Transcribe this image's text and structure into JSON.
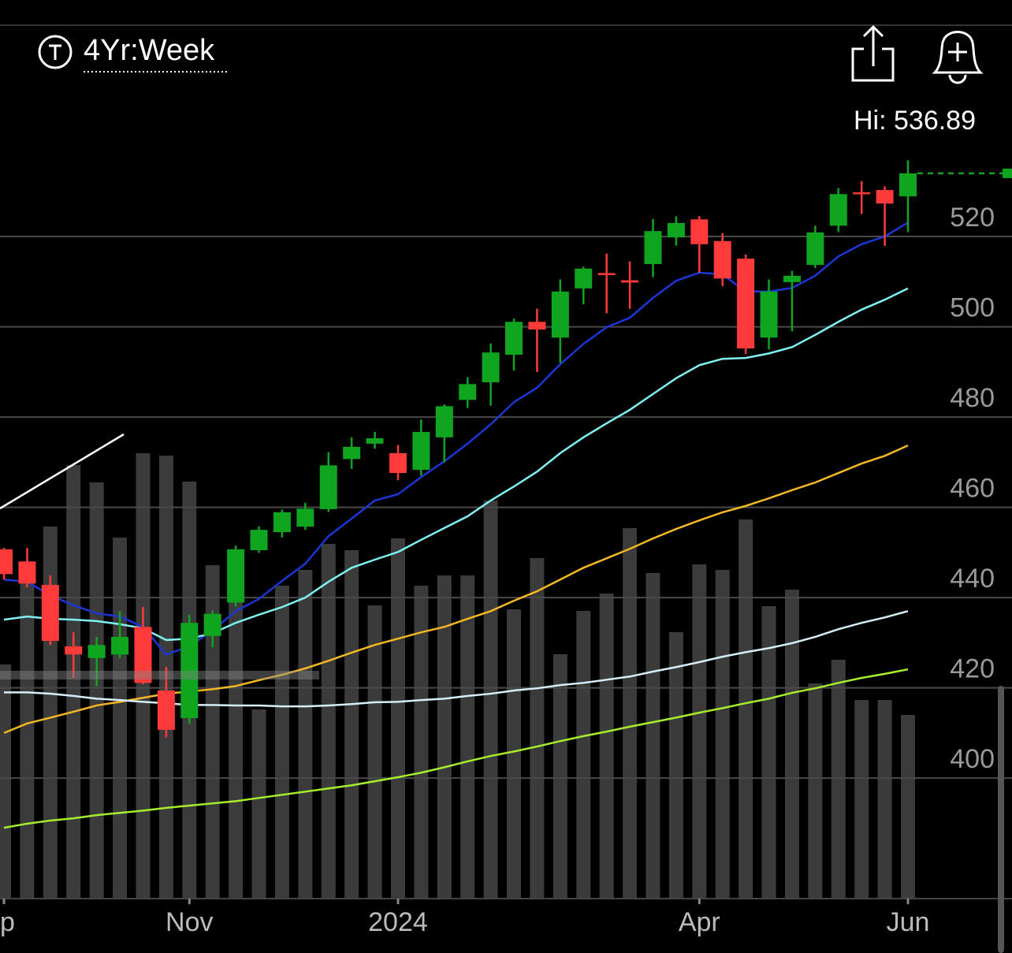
{
  "chart_data": {
    "type": "candlestick",
    "period_label": "4Yr:Week",
    "high_label": "Hi: 536.89",
    "open": [
      450.7,
      448.0,
      442.8,
      429.2,
      426.6,
      427.4,
      433.5,
      419.4,
      413.3,
      431.5,
      438.9,
      450.5,
      454.5,
      455.7,
      459.6,
      470.7,
      474.1,
      472.0,
      468.3,
      475.5,
      483.8,
      487.7,
      493.8,
      501.1,
      497.6,
      508.5,
      511.9,
      510.3,
      513.9,
      519.8,
      523.8,
      519.0,
      515.1,
      497.6,
      509.9,
      513.7,
      522.4,
      529.8,
      530.3,
      528.9
    ],
    "high": [
      451.0,
      451.0,
      444.9,
      432.3,
      431.3,
      437.0,
      437.9,
      424.6,
      436.2,
      437.1,
      451.5,
      455.8,
      459.5,
      461.0,
      472.2,
      475.5,
      476.7,
      473.8,
      479.5,
      482.8,
      488.8,
      496.3,
      501.8,
      504.0,
      510.5,
      513.3,
      516.2,
      514.5,
      523.9,
      524.5,
      524.5,
      520.7,
      516.0,
      510.5,
      512.4,
      522.4,
      530.7,
      532.3,
      531.1,
      536.89
    ],
    "low": [
      444.0,
      442.3,
      429.5,
      422.2,
      420.4,
      426.6,
      420.8,
      409.0,
      412.0,
      429.0,
      438.0,
      449.9,
      453.3,
      455.0,
      459.0,
      468.5,
      473.0,
      466.0,
      467.0,
      470.0,
      482.0,
      482.5,
      490.3,
      490.0,
      492.0,
      505.0,
      503.0,
      504.0,
      511.0,
      518.0,
      512.0,
      509.0,
      494.0,
      495.0,
      499.0,
      513.0,
      521.0,
      525.0,
      517.9,
      521.0
    ],
    "close": [
      445.2,
      443.1,
      430.4,
      427.4,
      429.5,
      431.3,
      421.1,
      410.7,
      434.4,
      436.4,
      450.7,
      455.0,
      458.9,
      459.7,
      469.3,
      473.4,
      475.3,
      467.6,
      476.7,
      482.4,
      487.3,
      494.3,
      501.1,
      499.4,
      507.8,
      512.9,
      511.7,
      509.8,
      521.2,
      523.0,
      518.3,
      510.7,
      495.2,
      507.8,
      511.3,
      520.9,
      529.4,
      529.6,
      527.3,
      534.0
    ],
    "volume": [
      297,
      420,
      472,
      550,
      528,
      458,
      565,
      562,
      529,
      423,
      395,
      240,
      397,
      417,
      450,
      442,
      372,
      457,
      397,
      410,
      410,
      505,
      367,
      432,
      310,
      365,
      387,
      470,
      413,
      338,
      424,
      417,
      481,
      371,
      392,
      273,
      303,
      252,
      252,
      233
    ],
    "vlim": [
      0,
      1010
    ],
    "up_color": "#10a51e",
    "down_color": "#ff3a3a",
    "volume_color": "#3b3b3b",
    "series": [
      {
        "color": "#1c36d6",
        "values": [
          444.0,
          443.5,
          440.5,
          438.3,
          436.5,
          435.8,
          433.5,
          427.4,
          429.2,
          432.7,
          437.0,
          439.7,
          443.7,
          447.5,
          453.6,
          457.5,
          461.5,
          462.9,
          466.7,
          470.2,
          474.1,
          478.4,
          483.3,
          486.5,
          491.7,
          496.2,
          499.9,
          502.0,
          506.4,
          510.2,
          512.0,
          511.6,
          507.8,
          507.8,
          508.6,
          511.3,
          515.6,
          518.3,
          520.0,
          523.1
        ]
      },
      {
        "color": "#7ff3f3",
        "values": [
          435.1,
          435.8,
          435.3,
          435.1,
          434.8,
          434.1,
          433.2,
          430.6,
          430.9,
          432.1,
          434.4,
          436.2,
          437.9,
          440.0,
          443.5,
          446.6,
          448.4,
          450.1,
          452.8,
          455.4,
          458.0,
          461.5,
          464.6,
          467.9,
          472.0,
          475.5,
          478.6,
          481.6,
          485.1,
          488.6,
          491.5,
          492.9,
          493.1,
          494.1,
          495.5,
          498.2,
          501.1,
          503.8,
          506.0,
          508.5
        ]
      },
      {
        "color": "#f4b823",
        "values": [
          410.0,
          412.1,
          413.4,
          414.7,
          416.1,
          416.9,
          417.8,
          418.7,
          419.2,
          419.7,
          420.4,
          421.7,
          422.9,
          424.3,
          426.0,
          427.8,
          429.5,
          430.9,
          432.3,
          433.5,
          435.3,
          437.0,
          439.3,
          441.4,
          444.0,
          446.6,
          448.7,
          450.8,
          453.1,
          455.2,
          457.1,
          458.9,
          460.3,
          462.0,
          463.8,
          465.5,
          467.6,
          469.7,
          471.4,
          473.7
        ]
      },
      {
        "color": "#d6eefa",
        "values": [
          419.0,
          419.0,
          418.7,
          418.2,
          417.6,
          417.3,
          416.9,
          416.6,
          416.2,
          416.2,
          416.1,
          416.1,
          415.9,
          415.9,
          416.1,
          416.4,
          416.8,
          416.9,
          417.3,
          417.6,
          418.2,
          418.7,
          419.4,
          419.9,
          420.6,
          421.1,
          421.8,
          422.5,
          423.6,
          424.6,
          425.7,
          426.9,
          427.9,
          428.8,
          429.9,
          431.3,
          433.0,
          434.4,
          435.6,
          437.0
        ]
      },
      {
        "color": "#a6ee2c",
        "values": [
          389.0,
          389.9,
          390.6,
          391.1,
          391.8,
          392.3,
          392.8,
          393.4,
          393.9,
          394.4,
          394.9,
          395.6,
          396.3,
          397.0,
          397.7,
          398.4,
          399.3,
          400.2,
          401.2,
          402.4,
          403.7,
          404.9,
          405.9,
          407.0,
          408.2,
          409.3,
          410.3,
          411.4,
          412.4,
          413.4,
          414.5,
          415.5,
          416.6,
          417.6,
          418.9,
          419.9,
          421.1,
          422.2,
          423.1,
          424.1
        ]
      }
    ],
    "ylim": [
      373.3,
      549.7
    ],
    "yticks": [
      400,
      420,
      440,
      460,
      480,
      500,
      520
    ],
    "xticks": [
      {
        "value": 0,
        "label": "p"
      },
      {
        "value": 8,
        "label": "Nov"
      },
      {
        "value": 17,
        "label": "2024"
      },
      {
        "value": 30,
        "label": "Apr"
      },
      {
        "value": 39,
        "label": "Jun"
      }
    ],
    "grid": true
  }
}
